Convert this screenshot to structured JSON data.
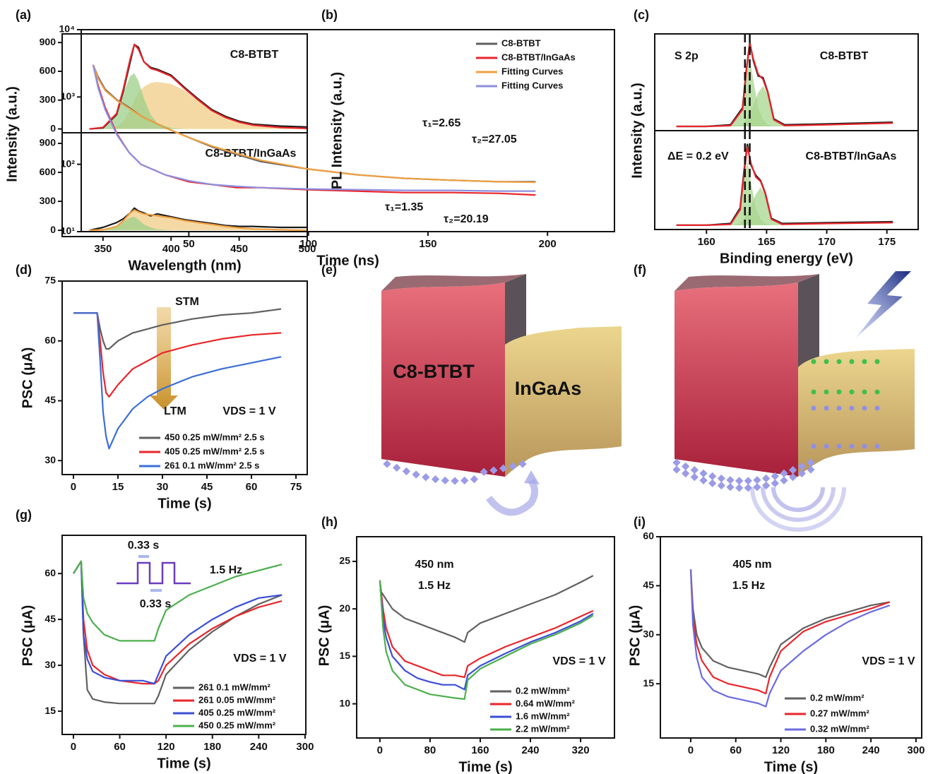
{
  "chart_data": [
    {
      "type": "line",
      "panel_label": "(a)",
      "ylabel": "Intensity (a.u.)",
      "annotations": [
        "C8-BTBT"
      ],
      "x": [
        340,
        350,
        360,
        365,
        370,
        373,
        376,
        380,
        385,
        390,
        400,
        410,
        420,
        430,
        440,
        450,
        460,
        480,
        500
      ],
      "xlim": [
        320,
        500
      ],
      "ylim": [
        -40,
        990
      ],
      "yticks": [
        0,
        300,
        600,
        900
      ],
      "series": [
        {
          "style": "area",
          "color": "#f2cc85",
          "values": [
            0,
            0,
            20,
            80,
            200,
            300,
            380,
            440,
            480,
            490,
            470,
            400,
            290,
            190,
            120,
            70,
            40,
            15,
            5
          ]
        },
        {
          "style": "area",
          "color": "#9ccf8a",
          "values": [
            0,
            10,
            150,
            380,
            550,
            580,
            500,
            320,
            150,
            60,
            10,
            0,
            0,
            0,
            0,
            0,
            0,
            0,
            0
          ]
        },
        {
          "color": "#1a1a1a",
          "values": [
            0,
            10,
            150,
            400,
            700,
            880,
            850,
            700,
            640,
            620,
            560,
            430,
            310,
            200,
            130,
            80,
            50,
            30,
            20
          ]
        },
        {
          "color": "#e8262b",
          "values": [
            0,
            15,
            160,
            420,
            730,
            880,
            830,
            700,
            630,
            610,
            550,
            420,
            300,
            190,
            120,
            70,
            40,
            15,
            5
          ]
        }
      ]
    },
    {
      "type": "line",
      "xlabel": "Wavelength (nm)",
      "annotations": [
        "C8-BTBT/InGaAs"
      ],
      "x": [
        340,
        350,
        360,
        365,
        370,
        373,
        376,
        380,
        385,
        390,
        400,
        410,
        420,
        430,
        440,
        450,
        460,
        480,
        500
      ],
      "xlim": [
        320,
        500
      ],
      "ylim": [
        -65,
        1010
      ],
      "xticks": [
        350,
        400,
        450,
        500
      ],
      "yticks": [
        0,
        300,
        600,
        900
      ],
      "series": [
        {
          "style": "area",
          "color": "#f2cc85",
          "values": [
            0,
            5,
            40,
            100,
            180,
            210,
            190,
            170,
            160,
            150,
            130,
            100,
            80,
            60,
            40,
            25,
            15,
            5,
            0
          ]
        },
        {
          "style": "area",
          "color": "#9ccf8a",
          "values": [
            0,
            5,
            40,
            90,
            130,
            140,
            110,
            60,
            30,
            10,
            0,
            0,
            0,
            0,
            0,
            0,
            0,
            0,
            0
          ]
        },
        {
          "color": "#1a1a1a",
          "values": [
            0,
            30,
            80,
            120,
            180,
            230,
            200,
            180,
            150,
            170,
            140,
            110,
            90,
            70,
            50,
            40,
            40,
            30,
            30
          ]
        },
        {
          "color": "#f0a040",
          "values": [
            0,
            5,
            40,
            100,
            180,
            210,
            190,
            170,
            160,
            150,
            130,
            100,
            80,
            60,
            40,
            25,
            15,
            5,
            0
          ]
        }
      ]
    },
    {
      "type": "line",
      "panel_label": "(b)",
      "ylabel": "PL Intensity (a.u.)",
      "xlabel": "Time (ns)",
      "ylog": true,
      "legend": "upper right",
      "annotations": [
        "τ₁=2.65",
        "τ₂=27.05",
        "τ₁=1.35",
        "τ₂=20.19"
      ],
      "x": [
        10,
        12,
        15,
        20,
        25,
        30,
        40,
        50,
        60,
        70,
        80,
        100,
        120,
        140,
        160,
        180,
        195
      ],
      "xlim": [
        5,
        228
      ],
      "ylim": [
        10,
        10000
      ],
      "xticks": [
        50,
        100,
        150,
        200
      ],
      "yticks": [
        {
          "value": 10,
          "label": "10¹"
        },
        {
          "value": 100,
          "label": "10²"
        },
        {
          "value": 1000,
          "label": "10³"
        },
        {
          "value": 10000,
          "label": "10⁴"
        }
      ],
      "series": [
        {
          "name": "C8-BTBT",
          "color": "#5f5f5f",
          "values": [
            3000,
            2000,
            1300,
            900,
            700,
            520,
            350,
            250,
            180,
            140,
            110,
            85,
            70,
            62,
            58,
            55,
            55
          ]
        },
        {
          "name": "C8-BTBT/InGaAs",
          "color": "#e8262b",
          "values": [
            3000,
            1500,
            700,
            280,
            150,
            100,
            70,
            55,
            50,
            45,
            45,
            42,
            40,
            38,
            38,
            37,
            35
          ]
        },
        {
          "name": "Fitting Curves",
          "color": "#f0a040",
          "values": [
            3000,
            1900,
            1250,
            880,
            680,
            520,
            350,
            250,
            185,
            145,
            115,
            85,
            70,
            62,
            58,
            55,
            54
          ]
        },
        {
          "name": "Fitting Curves",
          "color": "#8f8fe0",
          "values": [
            3000,
            1400,
            650,
            270,
            150,
            100,
            70,
            57,
            50,
            47,
            45,
            43,
            42,
            41,
            41,
            40,
            40
          ]
        }
      ]
    },
    {
      "type": "line",
      "panel_label": "(c)",
      "ylabel": "Intensity (a.u.)",
      "annotations": [
        "S 2p",
        "C8-BTBT"
      ],
      "x": [
        157.5,
        160,
        162,
        163,
        163.3,
        163.6,
        163.9,
        164.3,
        164.7,
        165.1,
        165.6,
        166.5,
        170,
        175.5
      ],
      "xlim": [
        155.7,
        177.6
      ],
      "ylim": [
        -5,
        110
      ],
      "vlines": [
        163.2,
        163.6
      ],
      "series": [
        {
          "style": "area",
          "color": "#a8d68f",
          "values": [
            0,
            0,
            0,
            18,
            55,
            80,
            55,
            22,
            8,
            2,
            0,
            0,
            0,
            0
          ]
        },
        {
          "style": "area",
          "color": "#a8d68f",
          "values": [
            0,
            0,
            0,
            2,
            8,
            18,
            25,
            40,
            48,
            38,
            8,
            0,
            0,
            0
          ]
        },
        {
          "color": "#1a1a1a",
          "values": [
            0,
            0,
            2,
            22,
            65,
            100,
            78,
            60,
            58,
            41,
            9,
            2,
            3,
            5
          ]
        },
        {
          "color": "#e8262b",
          "values": [
            0,
            0,
            1,
            20,
            63,
            98,
            80,
            62,
            56,
            40,
            8,
            1,
            2,
            4
          ]
        }
      ]
    },
    {
      "type": "line",
      "xlabel": "Binding energy (eV)",
      "annotations": [
        "ΔE = 0.2 eV",
        "C8-BTBT/InGaAs"
      ],
      "x": [
        157.5,
        160,
        162,
        162.8,
        163.1,
        163.4,
        163.7,
        164.1,
        164.5,
        164.9,
        165.4,
        166.3,
        170,
        175.5
      ],
      "xlim": [
        155.7,
        177.6
      ],
      "ylim": [
        -5,
        110
      ],
      "xticks": [
        160,
        165,
        170,
        175
      ],
      "vlines": [
        163.2,
        163.6
      ],
      "series": [
        {
          "style": "area",
          "color": "#a8d68f",
          "values": [
            0,
            0,
            0,
            16,
            50,
            75,
            50,
            20,
            7,
            2,
            0,
            0,
            0,
            0
          ]
        },
        {
          "style": "area",
          "color": "#a8d68f",
          "values": [
            0,
            0,
            0,
            2,
            7,
            16,
            22,
            36,
            44,
            34,
            7,
            0,
            0,
            0
          ]
        },
        {
          "color": "#1a1a1a",
          "values": [
            0,
            0,
            2,
            20,
            60,
            94,
            70,
            58,
            52,
            37,
            8,
            2,
            3,
            4
          ]
        },
        {
          "color": "#e8262b",
          "values": [
            0,
            0,
            1,
            18,
            57,
            91,
            72,
            56,
            51,
            36,
            7,
            1,
            2,
            3
          ]
        }
      ]
    },
    {
      "type": "line",
      "panel_label": "(d)",
      "ylabel": "PSC (μA)",
      "xlabel": "Time (s)",
      "legend": "lower right",
      "annotations": [
        "STM",
        "LTM",
        "VDS = 1 V"
      ],
      "x": [
        0,
        5,
        8,
        9,
        10,
        11,
        12,
        15,
        20,
        25,
        30,
        40,
        50,
        60,
        70
      ],
      "xlim": [
        -3.8,
        78.8
      ],
      "ylim": [
        26.5,
        75
      ],
      "xticks": [
        0,
        15,
        30,
        45,
        60,
        75
      ],
      "yticks": [
        30,
        45,
        60,
        75
      ],
      "series": [
        {
          "name": "450 0.25 mW/mm² 2.5 s",
          "color": "#606060",
          "values": [
            67,
            67,
            67,
            63,
            60,
            58,
            58,
            60,
            62,
            63,
            64,
            65.5,
            66.5,
            67,
            68
          ]
        },
        {
          "name": "405 0.25 mW/mm² 2.5 s",
          "color": "#e8262b",
          "values": [
            67,
            67,
            67,
            60,
            52,
            47,
            46,
            49,
            53,
            55,
            57,
            59,
            60.5,
            61.5,
            62
          ]
        },
        {
          "name": "261 0.1  mW/mm² 2.5 s",
          "color": "#3b6fd6",
          "values": [
            67,
            67,
            67,
            55,
            42,
            36,
            33,
            38,
            43,
            46,
            48,
            51,
            53,
            54.5,
            56
          ]
        }
      ]
    },
    {
      "type": "line",
      "panel_label": "(g)",
      "ylabel": "PSC (μA)",
      "xlabel": "Time (s)",
      "legend": "lower right",
      "annotations": [
        "1.5 Hz",
        "0.33 s",
        "0.33 s",
        "VDS = 1 V"
      ],
      "x": [
        0,
        5,
        10,
        13,
        18,
        25,
        40,
        60,
        90,
        105,
        110,
        120,
        150,
        180,
        210,
        240,
        270
      ],
      "xlim": [
        -14.6,
        301
      ],
      "ylim": [
        7.4,
        72.5
      ],
      "xticks": [
        0,
        60,
        120,
        180,
        240,
        300
      ],
      "yticks": [
        15,
        30,
        45,
        60
      ],
      "series": [
        {
          "name": "261 0.1  mW/mm²",
          "color": "#606060",
          "values": [
            60,
            62,
            64,
            40,
            22,
            19,
            18,
            17.5,
            17.5,
            17.5,
            20,
            27,
            35,
            41,
            46,
            50,
            53
          ]
        },
        {
          "name": "261 0.05 mW/mm²",
          "color": "#e8262b",
          "values": [
            60,
            62,
            64,
            45,
            35,
            30,
            27,
            25,
            24,
            24,
            25,
            30,
            37,
            42,
            46,
            49,
            51
          ]
        },
        {
          "name": "405 0.25 mW/mm²",
          "color": "#3b4fd6",
          "values": [
            60,
            62,
            64,
            40,
            32,
            28,
            26,
            25,
            25,
            24,
            27,
            33,
            40,
            45,
            49,
            52,
            53
          ]
        },
        {
          "name": "450 0.25 mW/mm²",
          "color": "#4bb04b",
          "values": [
            60,
            62,
            64,
            52,
            47,
            44,
            40,
            38,
            38,
            38,
            42,
            48,
            53,
            56,
            59,
            61,
            63
          ]
        }
      ]
    },
    {
      "type": "line",
      "panel_label": "(h)",
      "ylabel": "PSC (μA)",
      "xlabel": "Time (s)",
      "legend": "lower right",
      "annotations": [
        "450 nm",
        "1.5 Hz",
        "VDS = 1 V"
      ],
      "x": [
        0,
        5,
        10,
        20,
        40,
        60,
        80,
        100,
        120,
        135,
        140,
        160,
        200,
        240,
        280,
        320,
        340
      ],
      "xlim": [
        -37,
        374
      ],
      "ylim": [
        6.4,
        27.6
      ],
      "xticks": [
        0,
        80,
        160,
        240,
        320
      ],
      "yticks": [
        10,
        15,
        20,
        25
      ],
      "series": [
        {
          "name": "0.2   mW/mm²",
          "color": "#606060",
          "values": [
            22,
            21.5,
            21,
            20,
            19,
            18.5,
            18,
            17.5,
            17,
            16.5,
            17.5,
            18.5,
            19.5,
            20.5,
            21.5,
            22.8,
            23.5
          ]
        },
        {
          "name": "0.64  mW/mm²",
          "color": "#e8262b",
          "values": [
            23,
            20,
            18,
            16,
            14.5,
            14,
            13.5,
            13,
            13,
            12.8,
            14,
            14.8,
            16,
            17,
            18,
            19.2,
            19.8
          ]
        },
        {
          "name": "1.6   mW/mm²",
          "color": "#3b4fd6",
          "values": [
            23,
            19,
            17,
            15,
            13.5,
            12.7,
            12.3,
            12,
            12,
            11.5,
            13,
            14,
            15.3,
            16.5,
            17.5,
            18.7,
            19.5
          ]
        },
        {
          "name": "2.2   mW/mm²",
          "color": "#4bb04b",
          "values": [
            23,
            18,
            15.5,
            13.5,
            12,
            11.5,
            11,
            10.8,
            10.6,
            10.5,
            12.5,
            13.7,
            15,
            16.3,
            17.3,
            18.5,
            19.3
          ]
        }
      ]
    },
    {
      "type": "line",
      "panel_label": "(i)",
      "ylabel": "PSC (μA)",
      "xlabel": "Time (s)",
      "legend": "lower right",
      "annotations": [
        "405 nm",
        "1.5 Hz",
        "VDS = 1 V"
      ],
      "x": [
        0,
        3,
        8,
        15,
        30,
        50,
        70,
        90,
        100,
        105,
        120,
        150,
        180,
        210,
        240,
        265
      ],
      "xlim": [
        -40.4,
        307.6
      ],
      "ylim": [
        -1.6,
        60
      ],
      "xticks": [
        0,
        60,
        120,
        180,
        240,
        300
      ],
      "yticks": [
        15,
        30,
        45,
        60
      ],
      "series": [
        {
          "name": "0.2  mW/mm²",
          "color": "#606060",
          "values": [
            50,
            38,
            30,
            26,
            22,
            20,
            19,
            18,
            17,
            20,
            27,
            32,
            35,
            37,
            39,
            40
          ]
        },
        {
          "name": "0.27 mW/mm²",
          "color": "#e8262b",
          "values": [
            50,
            35,
            27,
            22,
            17,
            15,
            14,
            13,
            12,
            17,
            25,
            31,
            34,
            36,
            38,
            40
          ]
        },
        {
          "name": "0.32 mW/mm²",
          "color": "#6b6be0",
          "values": [
            50,
            33,
            23,
            17,
            13,
            11,
            10,
            9,
            8,
            12,
            19,
            25,
            30,
            34,
            37,
            39
          ]
        }
      ]
    }
  ],
  "diagrams": {
    "e": {
      "panel_label": "(e)",
      "labels": [
        "C8-BTBT",
        "InGaAs"
      ]
    },
    "f": {
      "panel_label": "(f)"
    }
  }
}
